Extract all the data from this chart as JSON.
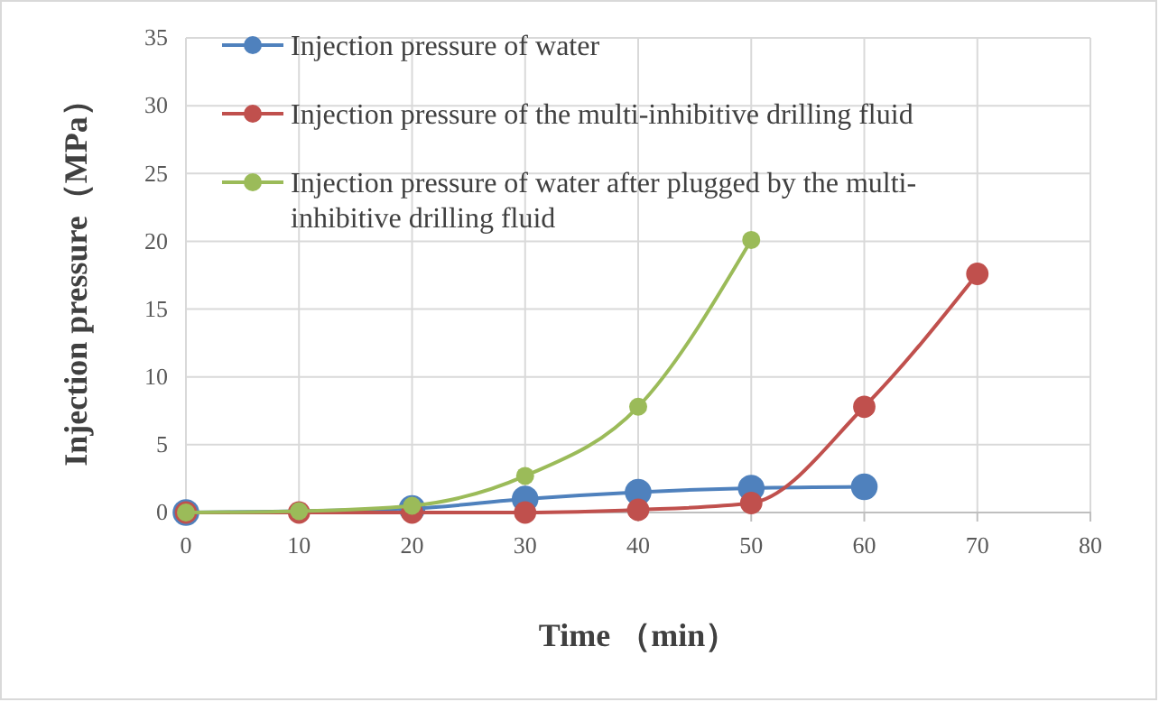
{
  "chart_data": {
    "type": "line",
    "xlabel": "Time （min）",
    "ylabel": "Injection pressure（MPa）",
    "x": [
      0,
      10,
      20,
      30,
      40,
      50,
      60,
      70
    ],
    "xlim": [
      0,
      80
    ],
    "xticks": [
      0,
      10,
      20,
      30,
      40,
      50,
      60,
      70,
      80
    ],
    "ylim": [
      0,
      35
    ],
    "yticks": [
      0,
      5,
      10,
      15,
      20,
      25,
      30,
      35
    ],
    "grid": true,
    "legend": "top left",
    "marker": "circle",
    "series": [
      {
        "name": "Injection pressure of water",
        "color": "#4f81bd",
        "values": [
          0,
          null,
          0.3,
          1.0,
          1.5,
          1.8,
          1.9,
          null
        ]
      },
      {
        "name": "Injection pressure of the multi-inhibitive drilling fluid",
        "color": "#c0504d",
        "values": [
          0,
          0,
          0,
          0,
          0.2,
          0.7,
          7.8,
          17.6
        ]
      },
      {
        "name": "Injection pressure of water after plugged by the multi-inhibitive drilling fluid",
        "color": "#9bbb59",
        "values": [
          0,
          0.1,
          0.5,
          2.7,
          7.8,
          20.1,
          null,
          null
        ]
      }
    ]
  }
}
